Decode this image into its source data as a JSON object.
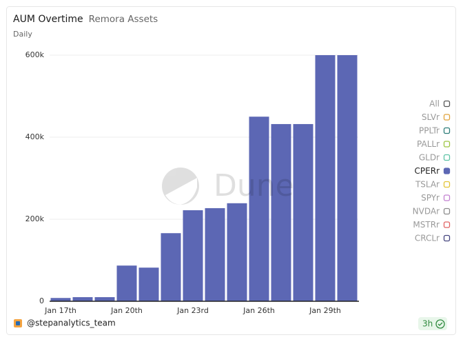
{
  "chart_data": {
    "type": "bar",
    "title": "AUM Overtime",
    "subtitle": "Remora Assets",
    "period": "Daily",
    "watermark": "Dune",
    "categories": [
      "Jan 17th",
      null,
      null,
      "Jan 20th",
      null,
      null,
      "Jan 23rd",
      null,
      null,
      "Jan 26th",
      null,
      null,
      "Jan 29th",
      null
    ],
    "values": [
      8000,
      10000,
      10000,
      87000,
      82000,
      166000,
      222000,
      227000,
      239000,
      450000,
      432000,
      432000,
      600000,
      600000
    ],
    "color": "#5c67b4",
    "ylim": [
      0,
      600000
    ],
    "yticks": [
      0,
      {
        "value": 200000,
        "label": "200k"
      },
      {
        "value": 400000,
        "label": "400k"
      },
      {
        "value": 600000,
        "label": "600k"
      }
    ],
    "grid": true,
    "legend_position": "right",
    "legend": [
      {
        "name": "All",
        "color": "#555555",
        "selected": false
      },
      {
        "name": "SLVr",
        "color": "#e0a23a",
        "selected": false
      },
      {
        "name": "PPLTr",
        "color": "#2b7c78",
        "selected": false
      },
      {
        "name": "PALLr",
        "color": "#9cc43f",
        "selected": false
      },
      {
        "name": "GLDr",
        "color": "#5cc2a4",
        "selected": false
      },
      {
        "name": "CPERr",
        "color": "#5c67b4",
        "selected": true
      },
      {
        "name": "TSLAr",
        "color": "#e3c334",
        "selected": false
      },
      {
        "name": "SPYr",
        "color": "#c27fd0",
        "selected": false
      },
      {
        "name": "NVDAr",
        "color": "#8a8a8a",
        "selected": false
      },
      {
        "name": "MSTRr",
        "color": "#e06060",
        "selected": false
      },
      {
        "name": "CRCLr",
        "color": "#44447e",
        "selected": false
      }
    ]
  },
  "footer": {
    "author": "@stepanalytics_team",
    "age": "3h"
  }
}
